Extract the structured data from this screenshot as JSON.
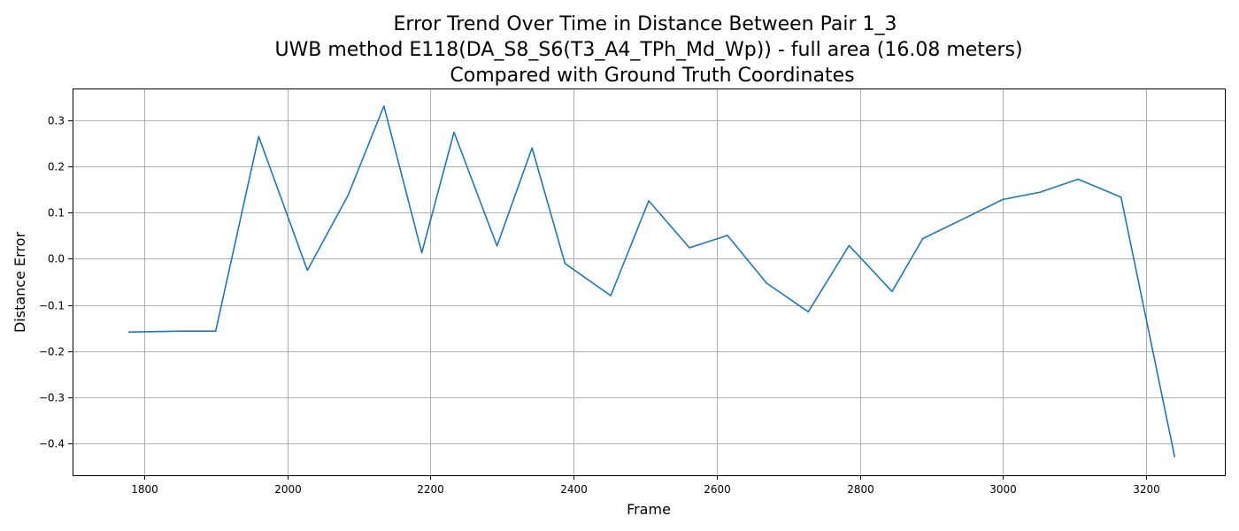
{
  "colors": {
    "series": "#1f77b4",
    "grid": "#b0b0b0",
    "axis": "#000000",
    "background": "#ffffff"
  },
  "chart_data": {
    "type": "line",
    "title_lines": [
      "Error Trend Over Time in Distance Between Pair 1_3",
      "UWB method E118(DA_S8_S6(T3_A4_TPh_Md_Wp)) - full area (16.08 meters)",
      "Compared with Ground Truth Coordinates"
    ],
    "xlabel": "Frame",
    "ylabel": "Distance Error",
    "xlim": [
      1700,
      3310
    ],
    "ylim": [
      -0.47,
      0.37
    ],
    "xticks": [
      1800,
      2000,
      2200,
      2400,
      2600,
      2800,
      3000,
      3200
    ],
    "yticks": [
      -0.4,
      -0.3,
      -0.2,
      -0.1,
      0.0,
      0.1,
      0.2,
      0.3
    ],
    "xtick_labels": [
      "1800",
      "2000",
      "2200",
      "2400",
      "2600",
      "2800",
      "3000",
      "3200"
    ],
    "ytick_labels": [
      "−0.4",
      "−0.3",
      "−0.2",
      "−0.1",
      "0.0",
      "0.1",
      "0.2",
      "0.3"
    ],
    "grid": true,
    "series": [
      {
        "x": [
          1778,
          1855,
          1900,
          1960,
          2028,
          2085,
          2135,
          2188,
          2233,
          2293,
          2342,
          2388,
          2452,
          2505,
          2562,
          2615,
          2670,
          2728,
          2785,
          2845,
          2888,
          2945,
          3000,
          3052,
          3105,
          3165,
          3240
        ],
        "y": [
          -0.159,
          -0.157,
          -0.157,
          0.266,
          -0.025,
          0.138,
          0.332,
          0.013,
          0.275,
          0.028,
          0.241,
          -0.01,
          -0.08,
          0.126,
          0.024,
          0.051,
          -0.053,
          -0.115,
          0.029,
          -0.071,
          0.044,
          0.087,
          0.129,
          0.145,
          0.173,
          0.134,
          -0.431
        ]
      }
    ]
  }
}
